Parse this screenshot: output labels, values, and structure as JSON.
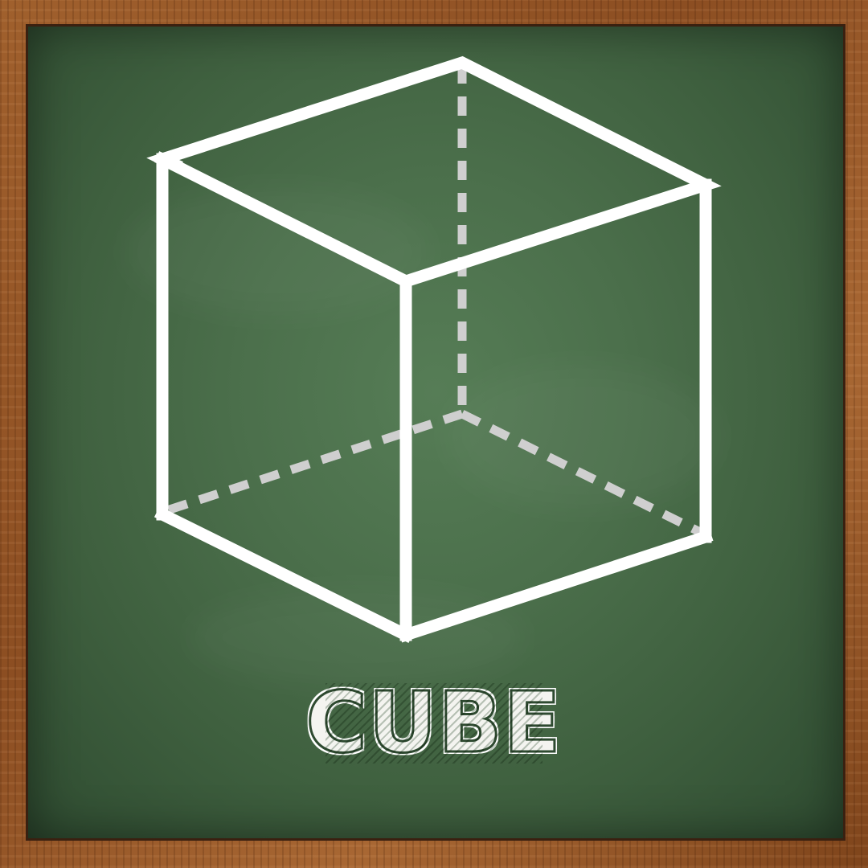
{
  "title": "CUBE",
  "colors": {
    "chalk_solid": "#ffffff",
    "chalk_hidden": "#cfcfcf",
    "board": "#4b6f4b",
    "frame": "#8c4e22"
  },
  "diagram": {
    "shape": "cube",
    "edge_style_visible": "solid",
    "edge_style_hidden": "dashed"
  }
}
